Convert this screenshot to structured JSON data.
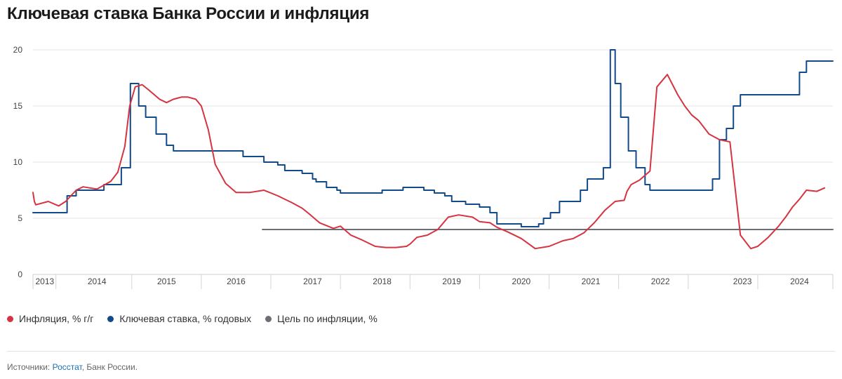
{
  "title": "Ключевая ставка Банка России и инфляция",
  "legend": [
    {
      "label": "Инфляция, % г/г",
      "color": "#d63340"
    },
    {
      "label": "Ключевая ставка, % годовых",
      "color": "#124a8a"
    },
    {
      "label": "Цель по инфляции, %",
      "color": "#6b6f75"
    }
  ],
  "source": {
    "prefix": "Источники: ",
    "link": "Росстат",
    "suffix": ", Банк России."
  },
  "chart_data": {
    "type": "line",
    "title": "Ключевая ставка Банка России и инфляция",
    "ylim": [
      0,
      20
    ],
    "yticks": [
      0,
      5,
      10,
      15,
      20
    ],
    "xlim": [
      2013.58,
      2025.08
    ],
    "year_labels": [
      "2013",
      "2014",
      "2015",
      "2016",
      "2017",
      "2018",
      "2019",
      "2020",
      "2021",
      "2022",
      "2023",
      "2024"
    ],
    "year_label_x": [
      2013.75,
      2014.5,
      2015.5,
      2016.5,
      2017.6,
      2018.6,
      2019.6,
      2020.6,
      2021.6,
      2022.6,
      2023.78,
      2024.6
    ],
    "year_dividers": [
      2013.91,
      2015.0,
      2016.0,
      2017.0,
      2018.0,
      2019.0,
      2020.0,
      2021.0,
      2022.0,
      2023.0,
      2024.0
    ],
    "grid": true,
    "series": [
      {
        "name": "Инфляция, % г/г",
        "color": "#d63340",
        "step": false,
        "x": [
          2013.58,
          2013.6,
          2013.62,
          2013.8,
          2013.95,
          2014.05,
          2014.2,
          2014.3,
          2014.5,
          2014.7,
          2014.8,
          2014.9,
          2014.97,
          2015.05,
          2015.15,
          2015.25,
          2015.4,
          2015.5,
          2015.6,
          2015.72,
          2015.8,
          2015.92,
          2016.0,
          2016.1,
          2016.2,
          2016.35,
          2016.5,
          2016.7,
          2016.9,
          2017.1,
          2017.3,
          2017.45,
          2017.55,
          2017.7,
          2017.9,
          2018.0,
          2018.15,
          2018.3,
          2018.5,
          2018.65,
          2018.8,
          2018.95,
          2019.0,
          2019.1,
          2019.25,
          2019.4,
          2019.55,
          2019.7,
          2019.9,
          2020.0,
          2020.15,
          2020.25,
          2020.4,
          2020.6,
          2020.8,
          2021.0,
          2021.2,
          2021.35,
          2021.5,
          2021.65,
          2021.8,
          2021.95,
          2022.08,
          2022.12,
          2022.18,
          2022.3,
          2022.45,
          2022.55,
          2022.7,
          2022.85,
          2022.95,
          2023.05,
          2023.15,
          2023.3,
          2023.45,
          2023.6,
          2023.75,
          2023.9,
          2024.0,
          2024.15,
          2024.3,
          2024.4,
          2024.5,
          2024.6,
          2024.7,
          2024.85,
          2024.96
        ],
        "values": [
          7.3,
          6.5,
          6.2,
          6.5,
          6.1,
          6.5,
          7.5,
          7.8,
          7.6,
          8.3,
          9.1,
          11.4,
          15.0,
          16.7,
          16.9,
          16.4,
          15.6,
          15.3,
          15.6,
          15.8,
          15.8,
          15.6,
          15.0,
          12.9,
          9.8,
          8.1,
          7.3,
          7.3,
          7.5,
          7.0,
          6.4,
          5.9,
          5.4,
          4.6,
          4.1,
          4.3,
          3.5,
          3.1,
          2.5,
          2.4,
          2.4,
          2.5,
          2.7,
          3.3,
          3.5,
          4.0,
          5.1,
          5.3,
          5.1,
          4.7,
          4.6,
          4.2,
          3.8,
          3.2,
          2.3,
          2.5,
          3.0,
          3.2,
          3.7,
          4.6,
          5.7,
          6.5,
          6.6,
          7.4,
          8.0,
          8.4,
          9.2,
          16.7,
          17.8,
          16.0,
          15.0,
          14.2,
          13.7,
          12.5,
          12.0,
          11.8,
          3.5,
          2.3,
          2.5,
          3.3,
          4.3,
          5.1,
          6.0,
          6.7,
          7.5,
          7.4,
          7.7
        ],
        "values_tail_note": ""
      },
      {
        "name": "Ключевая ставка, % годовых",
        "color": "#124a8a",
        "step": true,
        "x": [
          2013.58,
          2014.07,
          2014.2,
          2014.3,
          2014.6,
          2014.85,
          2014.98,
          2015.1,
          2015.2,
          2015.35,
          2015.5,
          2015.6,
          2016.0,
          2016.6,
          2016.9,
          2017.0,
          2017.1,
          2017.2,
          2017.45,
          2017.6,
          2017.65,
          2017.8,
          2017.95,
          2018.0,
          2018.3,
          2018.6,
          2018.9,
          2019.0,
          2019.2,
          2019.35,
          2019.5,
          2019.6,
          2019.8,
          2020.0,
          2020.15,
          2020.25,
          2020.6,
          2020.75,
          2020.85,
          2020.92,
          2021.02,
          2021.15,
          2021.3,
          2021.45,
          2021.55,
          2021.68,
          2021.78,
          2021.88,
          2021.95,
          2022.03,
          2022.14,
          2022.25,
          2022.38,
          2022.45,
          2022.6,
          2022.75,
          2023.05,
          2023.35,
          2023.45,
          2023.55,
          2023.65,
          2023.75,
          2023.85,
          2023.95,
          2024.6,
          2024.7,
          2024.9,
          2025.08
        ],
        "values": [
          5.5,
          7.0,
          7.5,
          7.5,
          8.0,
          9.5,
          17.0,
          15.0,
          14.0,
          12.5,
          11.5,
          11.0,
          11.0,
          10.5,
          10.0,
          10.0,
          9.75,
          9.25,
          9.0,
          8.5,
          8.25,
          7.75,
          7.5,
          7.25,
          7.25,
          7.5,
          7.75,
          7.75,
          7.5,
          7.25,
          7.0,
          6.5,
          6.25,
          6.0,
          5.5,
          4.5,
          4.25,
          4.25,
          4.5,
          5.0,
          5.5,
          6.5,
          6.5,
          7.5,
          8.5,
          8.5,
          9.5,
          20.0,
          17.0,
          14.0,
          11.0,
          9.5,
          8.0,
          7.5,
          7.5,
          7.5,
          7.5,
          8.5,
          12.0,
          13.0,
          15.0,
          16.0,
          16.0,
          16.0,
          18.0,
          19.0,
          19.0,
          19.0
        ]
      },
      {
        "name": "Цель по инфляции, %",
        "color": "#6b6f75",
        "step": false,
        "x": [
          2016.88,
          2025.08
        ],
        "values": [
          4.0,
          4.0
        ]
      }
    ]
  }
}
